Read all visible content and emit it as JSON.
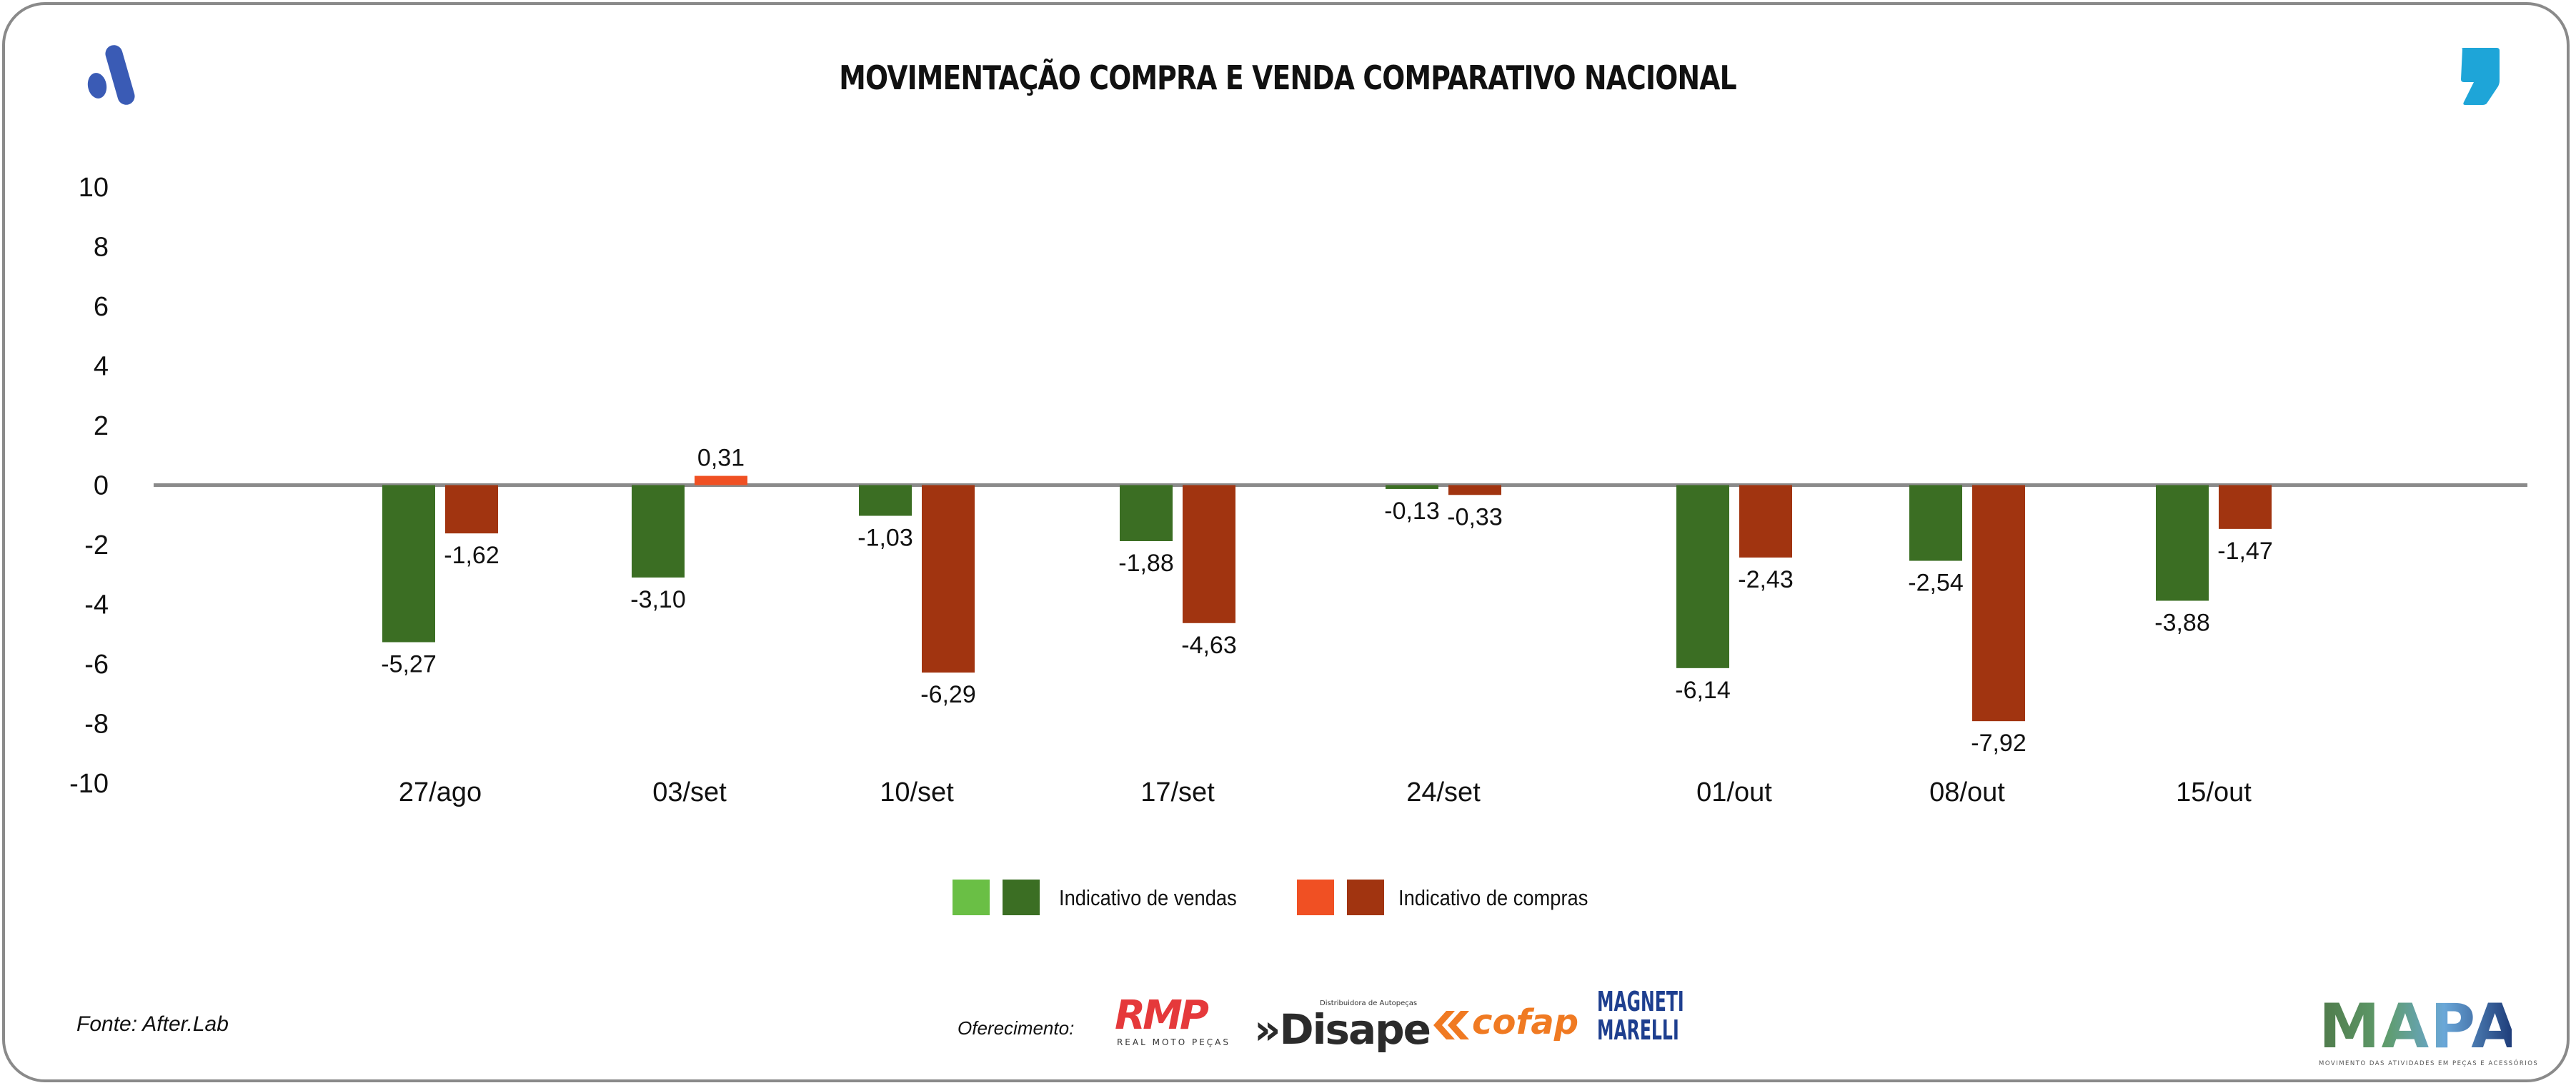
{
  "header": {
    "title": "MOVIMENTAÇÃO COMPRA E VENDA COMPARATIVO NACIONAL",
    "left_logo_icon": "brand-a-logo-icon",
    "right_logo_icon": "brand-comma-logo-icon"
  },
  "colors": {
    "vendas_light": "#6abf45",
    "vendas_dark": "#3b6e23",
    "compras_light": "#f05023",
    "compras_dark": "#a13410",
    "zero_line": "#8a8a8a",
    "frame": "#8a8a8a",
    "logo_blue": "#3a5bb5",
    "logo_cyan": "#1ea5d8"
  },
  "chart_data": {
    "type": "bar",
    "title": "MOVIMENTAÇÃO COMPRA E VENDA COMPARATIVO NACIONAL",
    "xlabel": "",
    "ylabel": "",
    "ylim": [
      -10,
      10
    ],
    "yticks": [
      10,
      8,
      6,
      4,
      2,
      0,
      -2,
      -4,
      -6,
      -8,
      -10
    ],
    "grid": false,
    "legend_position": "bottom-center",
    "categories": [
      "27/ago",
      "03/set",
      "10/set",
      "17/set",
      "24/set",
      "01/out",
      "08/out",
      "15/out"
    ],
    "series": [
      {
        "name": "Indicativo de vendas",
        "values": [
          -5.27,
          -3.1,
          -1.03,
          -1.88,
          -0.13,
          -6.14,
          -2.54,
          -3.88
        ],
        "labels": [
          "-5,27",
          "-3,10",
          "-1,03",
          "-1,88",
          "-0,13",
          "-6,14",
          "-2,54",
          "-3,88"
        ]
      },
      {
        "name": "Indicativo de compras",
        "values": [
          -1.62,
          0.31,
          -6.29,
          -4.63,
          -0.33,
          -2.43,
          -7.92,
          -1.47
        ],
        "labels": [
          "-1,62",
          "0,31",
          "-6,29",
          "-4,63",
          "-0,33",
          "-2,43",
          "-7,92",
          "-1,47"
        ]
      }
    ]
  },
  "legend": {
    "vendas_label": "Indicativo de vendas",
    "compras_label": "Indicativo de compras"
  },
  "footer": {
    "source": "Fonte: After.Lab",
    "sponsor_label": "Oferecimento:",
    "sponsors": {
      "rmp": {
        "name": "RMP",
        "tagline": "REAL MOTO PEÇAS"
      },
      "disape": {
        "name": "»Disape",
        "tagline": "Distribuidora de Autopeças"
      },
      "cofap": {
        "name": "cofap"
      },
      "magneti": {
        "line1": "MAGNETI",
        "line2": "MARELLI"
      }
    },
    "mapa": {
      "name": "MAPA",
      "tagline": "MOVIMENTO DAS ATIVIDADES EM PEÇAS E ACESSÓRIOS"
    }
  }
}
